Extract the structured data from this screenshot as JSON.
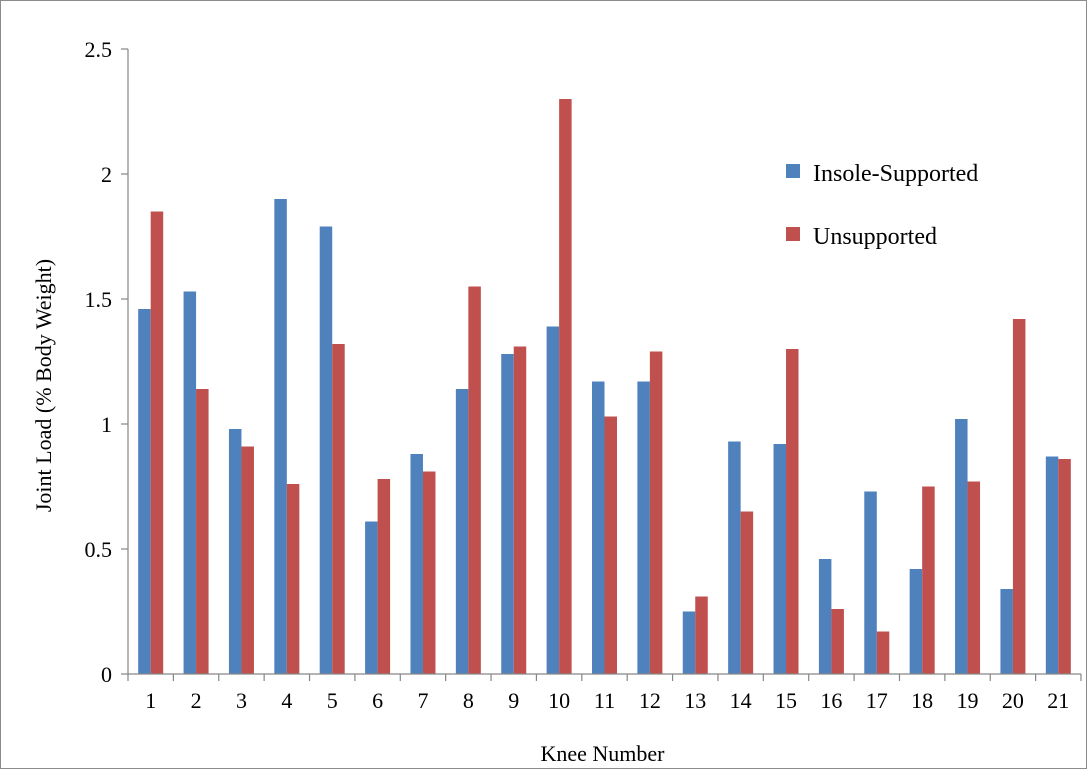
{
  "chart_data": {
    "type": "bar",
    "title": "",
    "xlabel": "Knee Number",
    "ylabel": "Joint Load (% Body Weight)",
    "ylim": [
      0,
      2.5
    ],
    "yticks": [
      "0",
      "0.5",
      "1",
      "1.5",
      "2",
      "2.5"
    ],
    "categories": [
      "1",
      "2",
      "3",
      "4",
      "5",
      "6",
      "7",
      "8",
      "9",
      "10",
      "11",
      "12",
      "13",
      "14",
      "15",
      "16",
      "17",
      "18",
      "19",
      "20",
      "21"
    ],
    "series": [
      {
        "name": "Insole-Supported",
        "color": "#4f81bd",
        "values": [
          1.46,
          1.53,
          0.98,
          1.9,
          1.79,
          0.61,
          0.88,
          1.14,
          1.28,
          1.39,
          1.17,
          1.17,
          0.25,
          0.93,
          0.92,
          0.46,
          0.73,
          0.42,
          1.02,
          0.34,
          0.87
        ]
      },
      {
        "name": "Unsupported",
        "color": "#c0504d",
        "values": [
          1.85,
          1.14,
          0.91,
          0.76,
          1.32,
          0.78,
          0.81,
          1.55,
          1.31,
          2.3,
          1.03,
          1.29,
          0.31,
          0.65,
          1.3,
          0.26,
          0.17,
          0.75,
          0.77,
          1.42,
          0.86
        ]
      }
    ],
    "grid": false,
    "legend_position": "top-right"
  }
}
